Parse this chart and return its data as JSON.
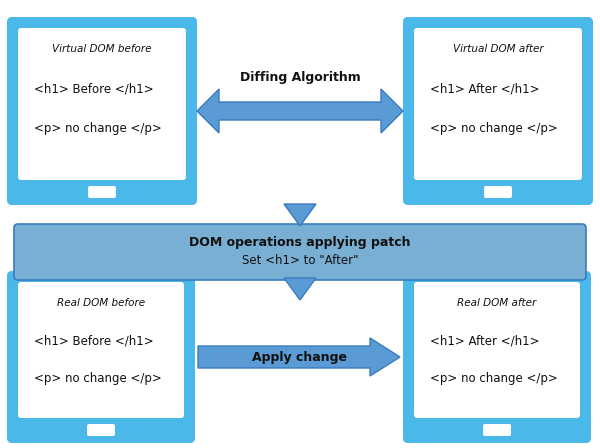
{
  "bg_color": "#ffffff",
  "tablet_border_color": "#4ab8e8",
  "tablet_bg_color": "#ffffff",
  "arrow_color": "#5b9bd5",
  "arrow_edge_color": "#3a7bbf",
  "patch_box_color": "#7aafd4",
  "patch_box_edge_color": "#3a7bbf",
  "patch_box_text_bold": "DOM operations applying patch",
  "patch_box_text_sub": "Set <h1> to \"After\"",
  "top_left_title": "Virtual DOM before",
  "top_left_line1": "<h1> Before </h1>",
  "top_left_line2": "<p> no change </p>",
  "top_right_title": "Virtual DOM after",
  "top_right_line1": "<h1> After </h1>",
  "top_right_line2": "<p> no change </p>",
  "bot_left_title": "Real DOM before",
  "bot_left_line1": "<h1> Before </h1>",
  "bot_left_line2": "<p> no change </p>",
  "bot_right_title": "Real DOM after",
  "bot_right_line1": "<h1> After </h1>",
  "bot_right_line2": "<p> no change </p>",
  "diffing_label": "Diffing Algorithm",
  "apply_label": "Apply change"
}
